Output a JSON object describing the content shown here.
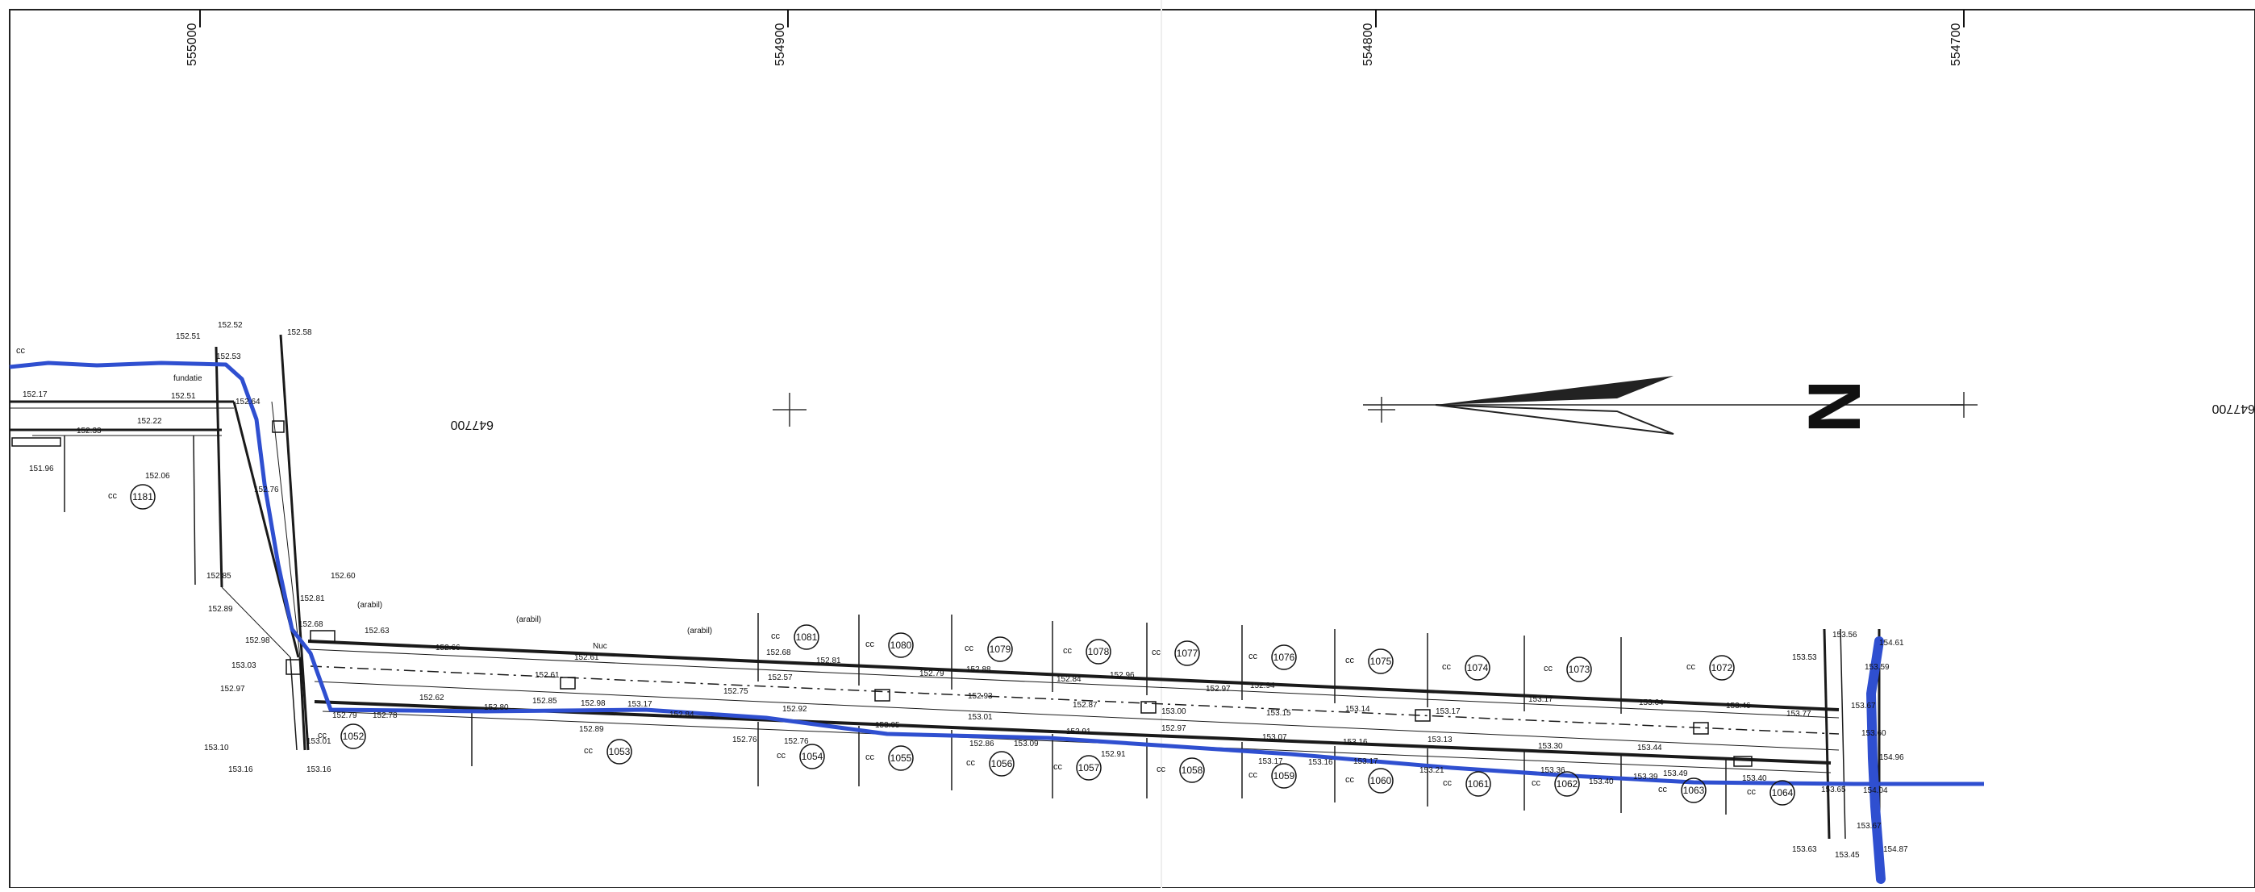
{
  "grid": {
    "x_ticks": [
      "555000",
      "554900",
      "554800",
      "554700"
    ],
    "y_tick": "647700"
  },
  "north_label": "N",
  "parcels_top": [
    "1081",
    "1080",
    "1079",
    "1078",
    "1077",
    "1076",
    "1075",
    "1074",
    "1073",
    "1072"
  ],
  "parcels_bottom": [
    "1052",
    "1053",
    "1054",
    "1055",
    "1056",
    "1057",
    "1058",
    "1059",
    "1060",
    "1061",
    "1062",
    "1063",
    "1064"
  ],
  "parcel_left": "1181",
  "land_code": "cc",
  "labels": {
    "arabil": "(arabil)",
    "nuc": "Nuc",
    "fundatie": "fundatie"
  },
  "elevations": {
    "top_left": [
      "152.52",
      "152.51",
      "152.53",
      "152.58",
      "152.17",
      "152.22",
      "152.33",
      "152.06",
      "151.96",
      "152.51",
      "152.64"
    ],
    "vertical_road": [
      "152.76",
      "152.85",
      "152.89",
      "152.60",
      "152.81",
      "152.68",
      "152.98",
      "153.03",
      "152.97",
      "152.63",
      "153.10",
      "153.16",
      "153.16",
      "153.01",
      "152.79",
      "152.78"
    ],
    "road_top": [
      "152.61",
      "152.66",
      "152.68",
      "152.81",
      "152.79",
      "152.88",
      "152.84",
      "152.96",
      "152.97",
      "152.94",
      "152.61",
      "152.57",
      "152.75",
      "152.93",
      "152.87",
      "153.00",
      "153.15",
      "153.14",
      "153.17",
      "153.17",
      "153.64",
      "153.46",
      "153.77"
    ],
    "road_bottom": [
      "152.62",
      "152.80",
      "152.85",
      "152.98",
      "153.17",
      "152.84",
      "152.92",
      "153.05",
      "153.01",
      "152.91",
      "152.97",
      "153.07",
      "153.16",
      "153.13",
      "153.30",
      "153.44",
      "152.89",
      "152.76",
      "152.76",
      "152.86",
      "153.09",
      "152.91",
      "153.17",
      "153.16",
      "153.17",
      "153.21",
      "153.36",
      "153.40",
      "153.39",
      "153.49",
      "153.40",
      "153.65"
    ],
    "right_end": [
      "153.56",
      "154.61",
      "153.53",
      "153.59",
      "153.67",
      "153.60",
      "154.96",
      "154.04",
      "153.67",
      "153.63",
      "153.45",
      "154.87"
    ]
  }
}
